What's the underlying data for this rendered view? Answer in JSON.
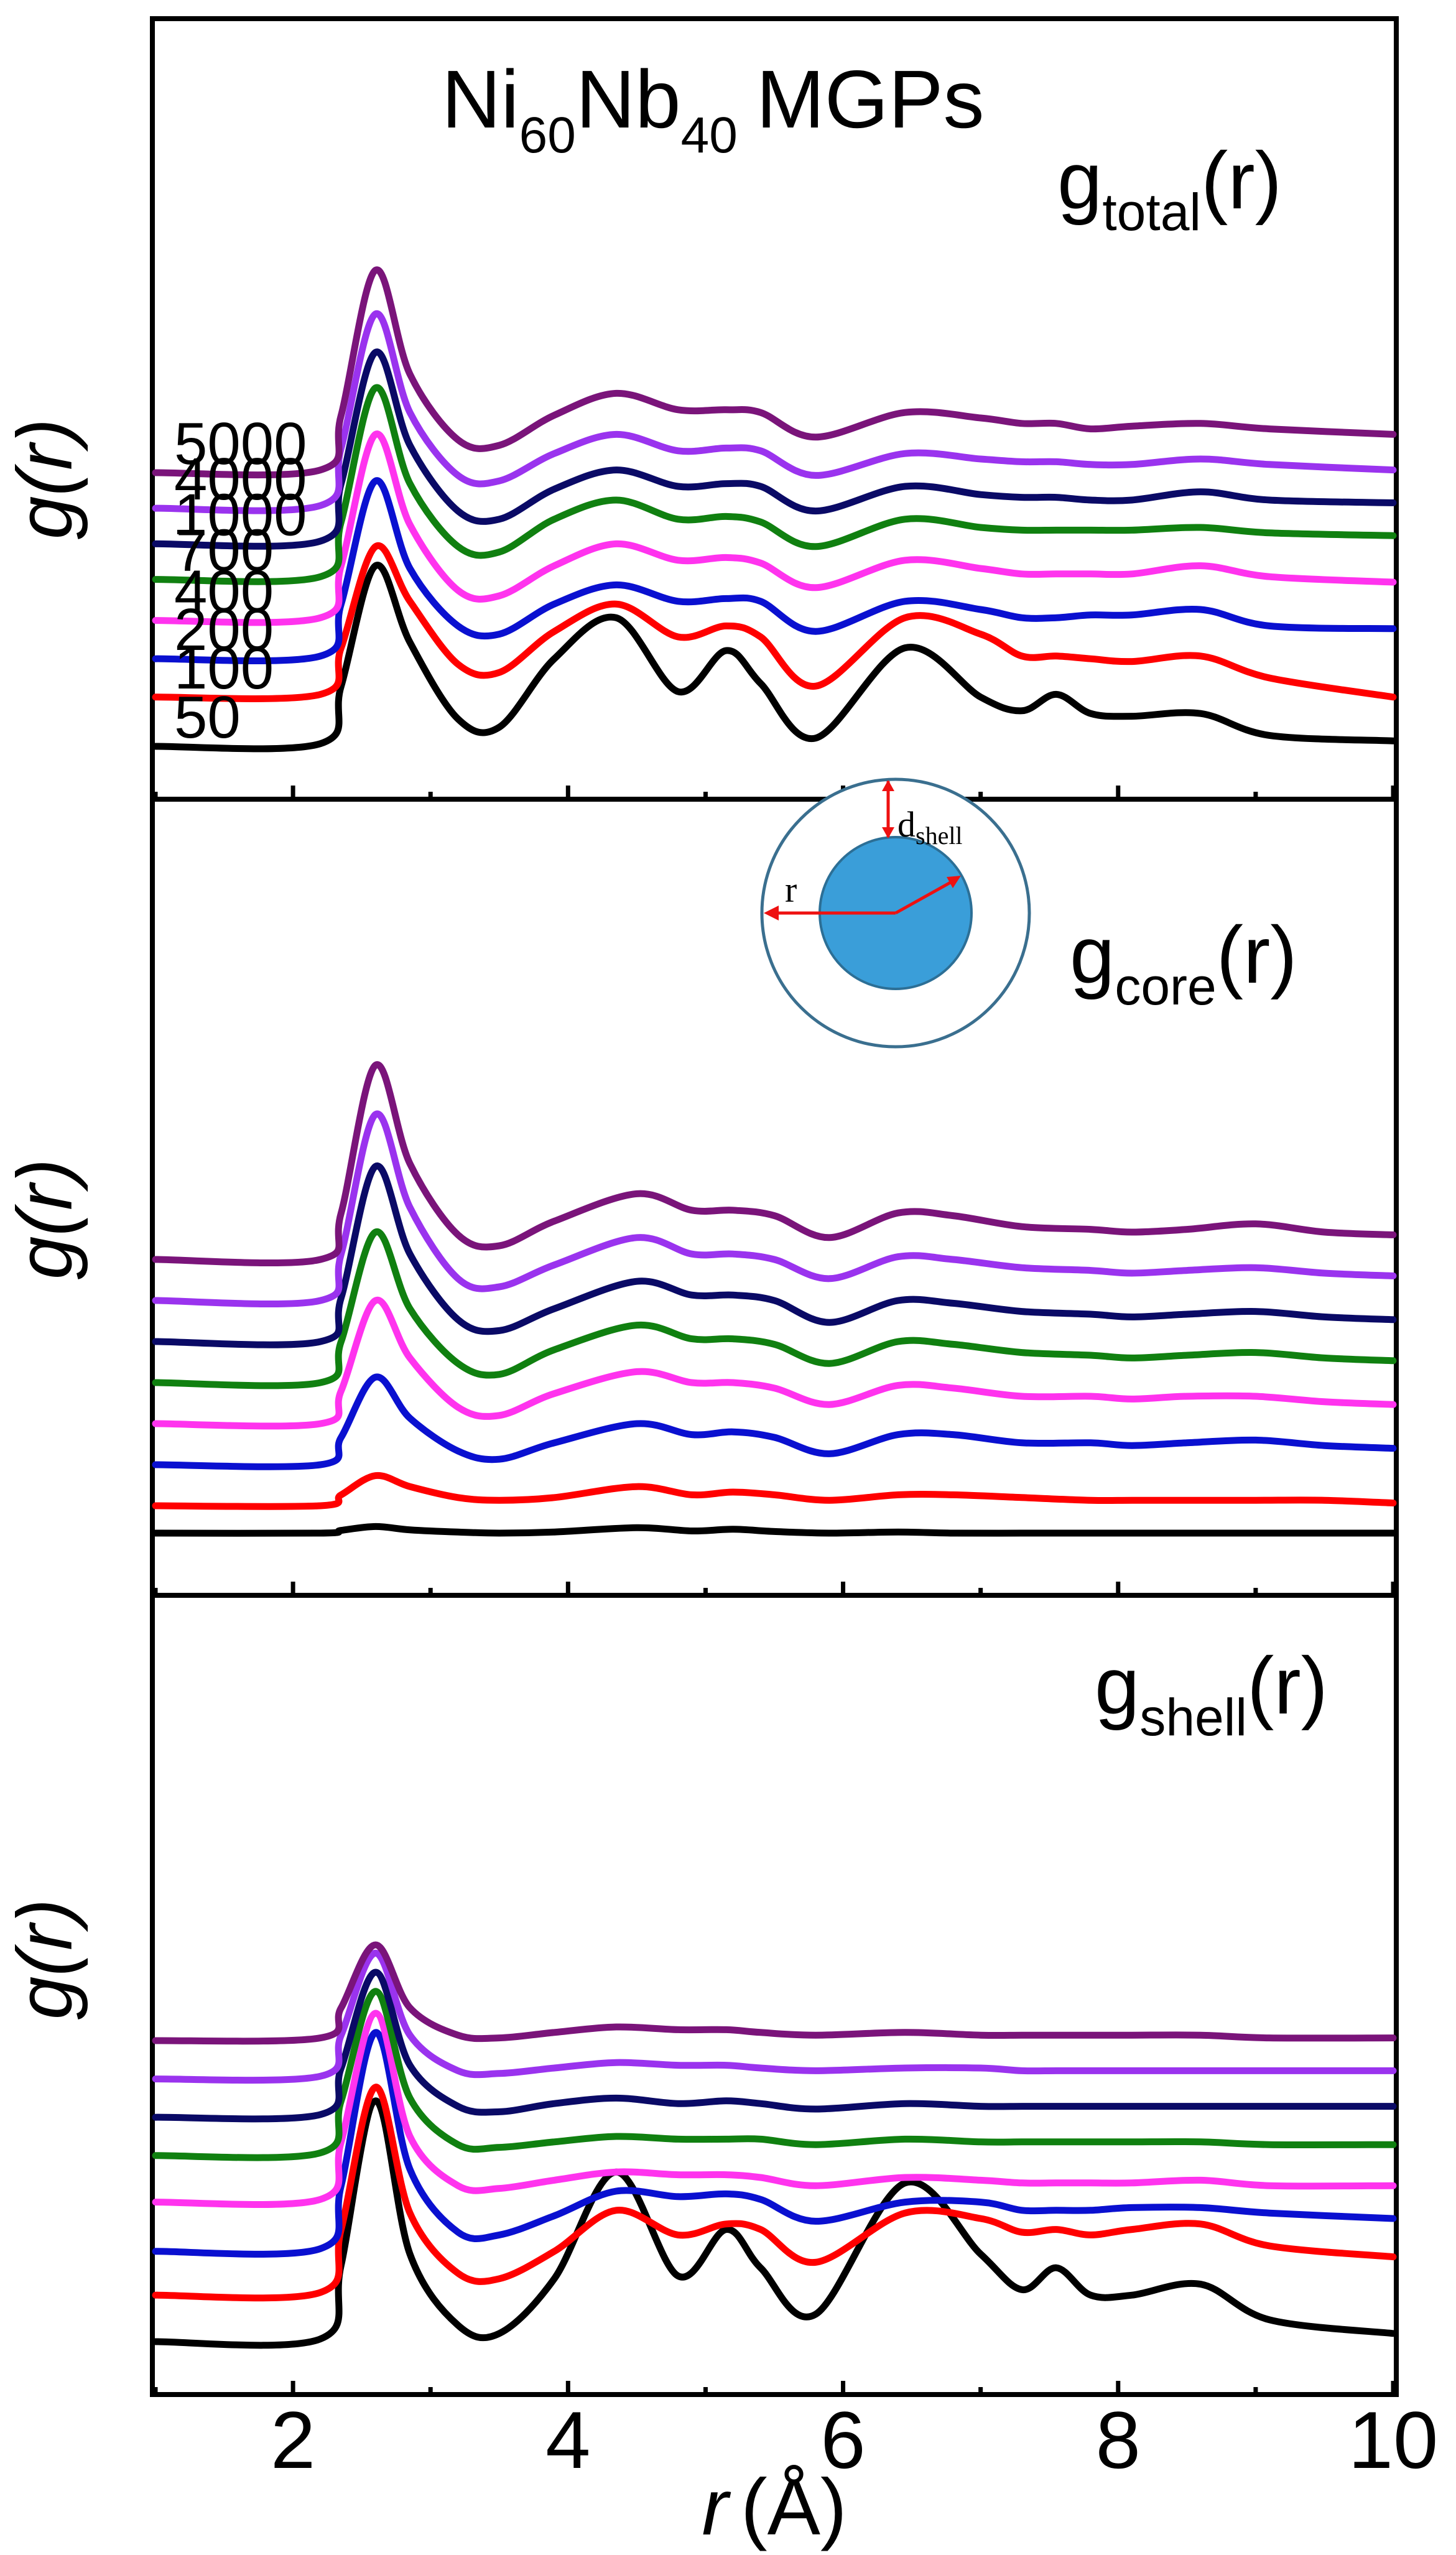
{
  "chart_data": {
    "type": "line",
    "title": "Ni60Nb40 MGPs",
    "title_parts": {
      "base1": "Ni",
      "sub1": "60",
      "base2": "Nb",
      "sub2": "40",
      "rest": "MGPs"
    },
    "xlabel": {
      "italic": "r",
      "unit": "(Å)"
    },
    "ylabel": "g(r)",
    "xlim": [
      1,
      10
    ],
    "x_ticks": [
      2,
      4,
      6,
      8,
      10
    ],
    "colors": {
      "50": "#000000",
      "100": "#ff0000",
      "200": "#0a10d0",
      "400": "#ff33ee",
      "700": "#108010",
      "1000": "#0a0a66",
      "4000": "#9a33ee",
      "5000": "#7a147a"
    },
    "series_order": [
      "50",
      "100",
      "200",
      "400",
      "700",
      "1000",
      "4000",
      "5000"
    ],
    "panels": [
      {
        "id": "total",
        "label": {
          "base": "g",
          "sub": "total",
          "suffix": "(r)"
        },
        "legend_labels": [
          "5000",
          "4000",
          "1000",
          "700",
          "400",
          "200",
          "100",
          "50"
        ],
        "x": [
          1.0,
          2.2,
          2.35,
          2.6,
          2.85,
          3.2,
          3.5,
          3.9,
          4.35,
          4.8,
          5.15,
          5.4,
          5.8,
          6.45,
          7.0,
          7.3,
          7.55,
          7.8,
          8.1,
          8.6,
          9.1,
          10.0
        ],
        "series": [
          {
            "key": "50",
            "offset": 0.0,
            "values": [
              0.0,
              0.05,
              1.1,
              3.3,
              1.9,
              0.5,
              0.35,
              1.6,
              2.35,
              1.0,
              1.75,
              1.15,
              0.15,
              1.8,
              0.9,
              0.65,
              0.95,
              0.6,
              0.55,
              0.6,
              0.2,
              0.1
            ]
          },
          {
            "key": "100",
            "offset": 0.9,
            "values": [
              0.0,
              0.05,
              0.9,
              2.75,
              1.75,
              0.6,
              0.45,
              1.2,
              1.7,
              1.1,
              1.3,
              1.1,
              0.2,
              1.45,
              1.15,
              0.75,
              0.75,
              0.7,
              0.65,
              0.75,
              0.35,
              0.0
            ]
          },
          {
            "key": "200",
            "offset": 1.6,
            "values": [
              0.0,
              0.05,
              1.0,
              3.25,
              1.65,
              0.6,
              0.45,
              1.0,
              1.35,
              1.05,
              1.1,
              1.05,
              0.5,
              1.05,
              0.9,
              0.75,
              0.75,
              0.8,
              0.8,
              0.9,
              0.6,
              0.55
            ]
          },
          {
            "key": "400",
            "offset": 2.3,
            "values": [
              0.0,
              0.05,
              1.0,
              3.4,
              1.75,
              0.55,
              0.45,
              1.0,
              1.4,
              1.1,
              1.15,
              1.05,
              0.6,
              1.1,
              0.95,
              0.85,
              0.85,
              0.85,
              0.85,
              1.0,
              0.8,
              0.7
            ]
          },
          {
            "key": "700",
            "offset": 3.05,
            "values": [
              0.0,
              0.05,
              1.05,
              3.5,
              1.75,
              0.6,
              0.5,
              1.1,
              1.45,
              1.1,
              1.15,
              1.05,
              0.6,
              1.1,
              0.95,
              0.9,
              0.9,
              0.9,
              0.9,
              0.95,
              0.85,
              0.8
            ]
          },
          {
            "key": "1000",
            "offset": 3.7,
            "values": [
              0.0,
              0.05,
              1.1,
              3.5,
              1.8,
              0.6,
              0.45,
              1.0,
              1.35,
              1.05,
              1.1,
              1.05,
              0.6,
              1.05,
              0.9,
              0.85,
              0.85,
              0.8,
              0.8,
              0.95,
              0.8,
              0.75
            ]
          },
          {
            "key": "4000",
            "offset": 4.35,
            "values": [
              0.0,
              0.05,
              1.1,
              3.55,
              1.75,
              0.6,
              0.5,
              1.0,
              1.35,
              1.05,
              1.1,
              1.05,
              0.6,
              1.0,
              0.9,
              0.85,
              0.85,
              0.8,
              0.8,
              0.9,
              0.8,
              0.7
            ]
          },
          {
            "key": "5000",
            "offset": 5.0,
            "values": [
              0.0,
              0.05,
              1.05,
              3.7,
              1.8,
              0.6,
              0.5,
              1.05,
              1.45,
              1.15,
              1.15,
              1.1,
              0.65,
              1.1,
              1.0,
              0.9,
              0.9,
              0.8,
              0.85,
              0.9,
              0.8,
              0.7
            ]
          }
        ]
      },
      {
        "id": "core",
        "label": {
          "base": "g",
          "sub": "core",
          "suffix": "(r)"
        },
        "legend_labels": [],
        "inset": {
          "r_label": "r",
          "d_label": {
            "base": "d",
            "sub": "shell"
          }
        },
        "x": [
          1.0,
          2.2,
          2.35,
          2.6,
          2.85,
          3.2,
          3.5,
          3.9,
          4.5,
          4.9,
          5.2,
          5.5,
          5.9,
          6.4,
          6.8,
          7.3,
          7.8,
          8.1,
          8.5,
          9.0,
          9.5,
          10.0
        ],
        "series": [
          {
            "key": "50",
            "offset": 0.0,
            "values": [
              0.0,
              0.0,
              0.05,
              0.12,
              0.06,
              0.02,
              0.0,
              0.02,
              0.1,
              0.04,
              0.07,
              0.03,
              0.0,
              0.02,
              0.0,
              0.0,
              0.0,
              0.0,
              0.0,
              0.0,
              0.0,
              0.0
            ]
          },
          {
            "key": "100",
            "offset": 0.5,
            "values": [
              0.0,
              0.0,
              0.2,
              0.55,
              0.35,
              0.15,
              0.1,
              0.15,
              0.35,
              0.2,
              0.25,
              0.2,
              0.1,
              0.2,
              0.2,
              0.15,
              0.1,
              0.1,
              0.1,
              0.1,
              0.1,
              0.05
            ]
          },
          {
            "key": "200",
            "offset": 1.25,
            "values": [
              0.0,
              0.0,
              0.5,
              1.6,
              0.85,
              0.25,
              0.1,
              0.4,
              0.75,
              0.55,
              0.6,
              0.5,
              0.2,
              0.55,
              0.55,
              0.4,
              0.4,
              0.35,
              0.4,
              0.45,
              0.35,
              0.3
            ]
          },
          {
            "key": "400",
            "offset": 2.0,
            "values": [
              0.0,
              0.0,
              0.6,
              2.25,
              1.2,
              0.3,
              0.15,
              0.55,
              0.95,
              0.75,
              0.75,
              0.65,
              0.35,
              0.7,
              0.65,
              0.5,
              0.5,
              0.45,
              0.5,
              0.5,
              0.4,
              0.35
            ]
          },
          {
            "key": "700",
            "offset": 2.75,
            "values": [
              0.0,
              0.0,
              0.75,
              2.75,
              1.35,
              0.35,
              0.15,
              0.6,
              1.05,
              0.8,
              0.8,
              0.7,
              0.35,
              0.75,
              0.7,
              0.55,
              0.5,
              0.45,
              0.5,
              0.55,
              0.45,
              0.4
            ]
          },
          {
            "key": "1000",
            "offset": 3.5,
            "values": [
              0.0,
              0.0,
              0.8,
              3.2,
              1.6,
              0.4,
              0.2,
              0.6,
              1.1,
              0.85,
              0.85,
              0.75,
              0.35,
              0.75,
              0.7,
              0.55,
              0.5,
              0.45,
              0.5,
              0.55,
              0.45,
              0.4
            ]
          },
          {
            "key": "4000",
            "offset": 4.25,
            "values": [
              0.0,
              0.0,
              0.85,
              3.4,
              1.7,
              0.4,
              0.25,
              0.65,
              1.15,
              0.85,
              0.85,
              0.75,
              0.4,
              0.8,
              0.75,
              0.6,
              0.55,
              0.5,
              0.55,
              0.6,
              0.5,
              0.45
            ]
          },
          {
            "key": "5000",
            "offset": 5.0,
            "values": [
              0.0,
              0.0,
              0.85,
              3.55,
              1.75,
              0.45,
              0.25,
              0.7,
              1.2,
              0.9,
              0.9,
              0.8,
              0.4,
              0.85,
              0.8,
              0.6,
              0.55,
              0.5,
              0.55,
              0.65,
              0.5,
              0.45
            ]
          }
        ]
      },
      {
        "id": "shell",
        "label": {
          "base": "g",
          "sub": "shell",
          "suffix": "(r)"
        },
        "legend_labels": [],
        "x": [
          1.0,
          2.2,
          2.35,
          2.6,
          2.85,
          3.2,
          3.5,
          3.9,
          4.35,
          4.8,
          5.15,
          5.4,
          5.8,
          6.45,
          7.0,
          7.3,
          7.55,
          7.8,
          8.1,
          8.6,
          9.1,
          10.0
        ],
        "series": [
          {
            "key": "50",
            "offset": 0.0,
            "values": [
              0.0,
              0.05,
              1.4,
              4.4,
              1.6,
              0.3,
              0.15,
              1.15,
              3.1,
              1.2,
              2.05,
              1.35,
              0.5,
              2.9,
              1.6,
              0.95,
              1.35,
              0.85,
              0.85,
              1.05,
              0.4,
              0.15
            ]
          },
          {
            "key": "100",
            "offset": 0.85,
            "values": [
              0.0,
              0.05,
              1.2,
              3.8,
              1.5,
              0.4,
              0.3,
              0.8,
              1.55,
              1.1,
              1.3,
              1.2,
              0.6,
              1.5,
              1.4,
              1.15,
              1.2,
              1.1,
              1.2,
              1.3,
              0.9,
              0.7
            ]
          },
          {
            "key": "200",
            "offset": 1.65,
            "values": [
              0.0,
              0.05,
              1.2,
              4.0,
              1.5,
              0.35,
              0.3,
              0.65,
              1.1,
              1.0,
              1.05,
              0.95,
              0.55,
              0.9,
              0.9,
              0.75,
              0.75,
              0.75,
              0.8,
              0.8,
              0.7,
              0.6
            ]
          },
          {
            "key": "400",
            "offset": 2.55,
            "values": [
              0.0,
              0.05,
              1.1,
              3.45,
              1.2,
              0.3,
              0.25,
              0.4,
              0.55,
              0.5,
              0.5,
              0.45,
              0.3,
              0.45,
              0.4,
              0.35,
              0.35,
              0.35,
              0.35,
              0.4,
              0.3,
              0.3
            ]
          },
          {
            "key": "700",
            "offset": 3.4,
            "values": [
              0.0,
              0.05,
              1.0,
              3.0,
              1.05,
              0.2,
              0.15,
              0.25,
              0.35,
              0.3,
              0.3,
              0.3,
              0.2,
              0.3,
              0.25,
              0.25,
              0.25,
              0.25,
              0.25,
              0.25,
              0.2,
              0.2
            ]
          },
          {
            "key": "1000",
            "offset": 4.1,
            "values": [
              0.0,
              0.05,
              0.9,
              2.65,
              0.95,
              0.2,
              0.1,
              0.25,
              0.35,
              0.25,
              0.3,
              0.25,
              0.15,
              0.25,
              0.2,
              0.2,
              0.2,
              0.2,
              0.2,
              0.2,
              0.2,
              0.2
            ]
          },
          {
            "key": "4000",
            "offset": 4.8,
            "values": [
              0.0,
              0.05,
              0.8,
              2.3,
              0.8,
              0.15,
              0.1,
              0.2,
              0.3,
              0.25,
              0.25,
              0.2,
              0.15,
              0.2,
              0.2,
              0.15,
              0.15,
              0.15,
              0.15,
              0.15,
              0.15,
              0.15
            ]
          },
          {
            "key": "5000",
            "offset": 5.5,
            "values": [
              0.0,
              0.05,
              0.6,
              1.75,
              0.6,
              0.1,
              0.05,
              0.15,
              0.25,
              0.2,
              0.2,
              0.15,
              0.1,
              0.15,
              0.1,
              0.1,
              0.1,
              0.1,
              0.1,
              0.1,
              0.05,
              0.05
            ]
          }
        ]
      }
    ]
  }
}
